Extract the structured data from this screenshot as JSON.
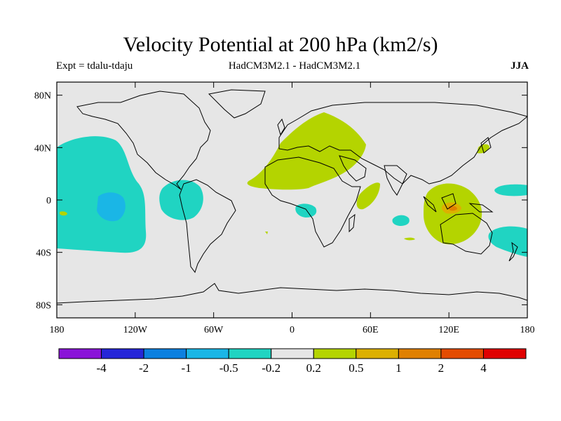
{
  "title": "Velocity Potential at 200 hPa (km2/s)",
  "subtitle_left": "Expt = tdalu-tdaju",
  "subtitle_center": "HadCM3M2.1 - HadCM3M2.1",
  "subtitle_right": "JJA",
  "map": {
    "projection": "cylindrical equidistant",
    "lon_range": [
      -180,
      180
    ],
    "lat_range": [
      -90,
      90
    ],
    "y_ticks": [
      {
        "lat": 80,
        "label": "80N"
      },
      {
        "lat": 40,
        "label": "40N"
      },
      {
        "lat": 0,
        "label": "0"
      },
      {
        "lat": -40,
        "label": "40S"
      },
      {
        "lat": -80,
        "label": "80S"
      }
    ],
    "x_ticks": [
      {
        "lon": -180,
        "label": "180"
      },
      {
        "lon": -120,
        "label": "120W"
      },
      {
        "lon": -60,
        "label": "60W"
      },
      {
        "lon": 0,
        "label": "0"
      },
      {
        "lon": 60,
        "label": "60E"
      },
      {
        "lon": 120,
        "label": "120E"
      },
      {
        "lon": 180,
        "label": "180"
      }
    ],
    "background_color": "#e6e6e6",
    "coast_color": "#000000"
  },
  "colorbar": {
    "colors": [
      "#8a14d8",
      "#2626d8",
      "#0c80e0",
      "#1ab6e6",
      "#20d4c2",
      "#e6e6e6",
      "#b4d400",
      "#dcb000",
      "#e08000",
      "#e44c00",
      "#e00000"
    ],
    "labels": [
      "-4",
      "-2",
      "-1",
      "-0.5",
      "-0.2",
      "0.2",
      "0.5",
      "1",
      "2",
      "4"
    ]
  }
}
